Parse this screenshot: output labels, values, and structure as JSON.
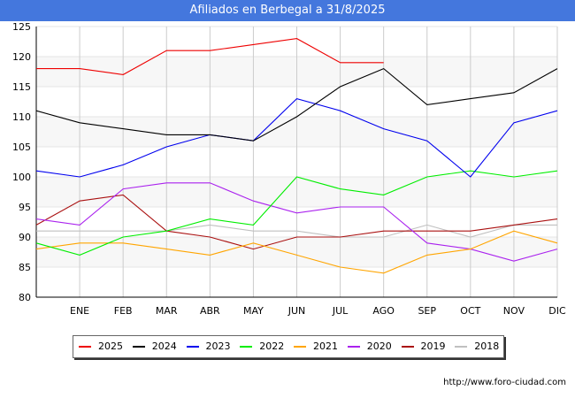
{
  "header": {
    "title": "Afiliados en Berbegal a 31/8/2025"
  },
  "footer": {
    "source": "http://www.foro-ciudad.com"
  },
  "colors": {
    "title_bg": "#4477dd",
    "plot_band": "#f7f7f7",
    "grid": "#cccccc"
  },
  "chart_data": {
    "type": "line",
    "categories": [
      "",
      "ENE",
      "FEB",
      "MAR",
      "ABR",
      "MAY",
      "JUN",
      "JUL",
      "AGO",
      "SEP",
      "OCT",
      "NOV",
      "DIC"
    ],
    "ylim": [
      80,
      125
    ],
    "yticks": [
      80,
      85,
      90,
      95,
      100,
      105,
      110,
      115,
      120,
      125
    ],
    "grid": true,
    "legend_position": "bottom",
    "series": [
      {
        "name": "2025",
        "color": "#ee0000",
        "values": [
          118,
          118,
          117,
          121,
          121,
          122,
          123,
          119,
          119,
          null,
          null,
          null,
          null
        ]
      },
      {
        "name": "2024",
        "color": "#000000",
        "values": [
          111,
          109,
          108,
          107,
          107,
          106,
          110,
          115,
          118,
          112,
          113,
          114,
          118
        ]
      },
      {
        "name": "2023",
        "color": "#0000ee",
        "values": [
          101,
          100,
          102,
          105,
          107,
          106,
          113,
          111,
          108,
          106,
          100,
          109,
          111
        ]
      },
      {
        "name": "2022",
        "color": "#00ee00",
        "values": [
          89,
          87,
          90,
          91,
          93,
          92,
          100,
          98,
          97,
          100,
          101,
          100,
          101
        ]
      },
      {
        "name": "2021",
        "color": "#ffa500",
        "values": [
          88,
          89,
          89,
          88,
          87,
          89,
          87,
          85,
          84,
          87,
          88,
          91,
          89
        ]
      },
      {
        "name": "2020",
        "color": "#aa22ee",
        "values": [
          93,
          92,
          98,
          99,
          99,
          96,
          94,
          95,
          95,
          89,
          88,
          86,
          88
        ]
      },
      {
        "name": "2019",
        "color": "#aa1111",
        "values": [
          92,
          96,
          97,
          91,
          90,
          88,
          90,
          90,
          91,
          91,
          91,
          92,
          93
        ]
      },
      {
        "name": "2018",
        "color": "#c0c0c0",
        "values": [
          91,
          91,
          91,
          91,
          92,
          91,
          91,
          90,
          90,
          92,
          90,
          92,
          92
        ]
      }
    ]
  }
}
